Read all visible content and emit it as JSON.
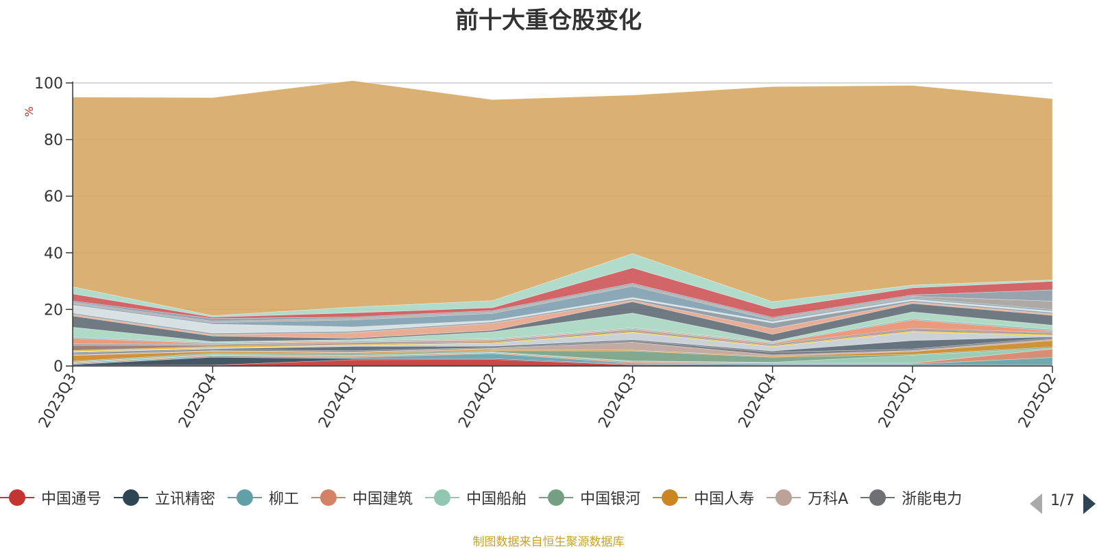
{
  "chart_data": {
    "type": "area",
    "stacked": true,
    "title": "前十大重仓股变化",
    "ylabel": "%",
    "ylim": [
      0,
      100
    ],
    "yticks": [
      0,
      20,
      40,
      60,
      80,
      100
    ],
    "grid": true,
    "legend_position": "bottom",
    "categories": [
      "2023Q3",
      "2023Q4",
      "2024Q1",
      "2024Q2",
      "2024Q3",
      "2024Q4",
      "2025Q1",
      "2025Q2"
    ],
    "series": [
      {
        "color": "#c23531",
        "values": [
          0.2,
          0.3,
          2.2,
          2.3,
          0.4,
          0.2,
          0.2,
          0.2
        ]
      },
      {
        "color": "#2f4554",
        "values": [
          0.3,
          2.8,
          0.4,
          0.3,
          0.2,
          0.2,
          0.2,
          0.2
        ]
      },
      {
        "color": "#61a0a8",
        "values": [
          0.3,
          0.4,
          0.4,
          1.8,
          0.4,
          0.3,
          0.3,
          2.6
        ]
      },
      {
        "name": "中国建筑",
        "color": "#d48265",
        "values": [
          0.3,
          0.3,
          0.4,
          0.3,
          0.4,
          0.3,
          0.3,
          3.0
        ]
      },
      {
        "name": "中国船舶",
        "color": "#91c7ae",
        "values": [
          0.3,
          0.4,
          0.4,
          0.3,
          0.4,
          0.3,
          2.8,
          0.3
        ]
      },
      {
        "name": "中国银河",
        "color": "#749f83",
        "values": [
          0.3,
          0.4,
          0.5,
          0.4,
          3.5,
          1.8,
          0.3,
          0.4
        ]
      },
      {
        "name": "中国人寿",
        "color": "#ca8622",
        "values": [
          2.0,
          0.5,
          0.4,
          0.4,
          0.3,
          0.3,
          1.0,
          2.3
        ]
      },
      {
        "name": "万科A",
        "color": "#bda29a",
        "values": [
          0.4,
          0.3,
          0.3,
          0.4,
          2.8,
          0.5,
          0.4,
          0.5
        ]
      },
      {
        "name": "浙能电力",
        "color": "#6e7074",
        "values": [
          0.4,
          0.4,
          0.4,
          0.3,
          0.5,
          1.0,
          0.5,
          0.5
        ]
      },
      {
        "color": "#546570",
        "values": [
          0.3,
          0.3,
          1.5,
          0.5,
          0.4,
          0.4,
          3.0,
          0.3
        ]
      },
      {
        "color": "#c4ccd3",
        "values": [
          0.3,
          0.3,
          0.4,
          1.0,
          2.5,
          1.5,
          3.0,
          0.4
        ]
      },
      {
        "color": "#e6b600",
        "values": [
          0.4,
          0.5,
          0.3,
          0.3,
          0.3,
          0.3,
          0.4,
          0.4
        ]
      },
      {
        "color": "#95706d",
        "values": [
          1.8,
          0.4,
          0.4,
          0.3,
          0.4,
          0.3,
          0.4,
          0.4
        ]
      },
      {
        "color": "#909090",
        "values": [
          0.5,
          0.4,
          0.4,
          0.4,
          0.4,
          0.4,
          0.5,
          0.4
        ]
      },
      {
        "color": "#e98f6f",
        "values": [
          2.0,
          0.3,
          0.3,
          0.3,
          0.3,
          0.3,
          3.0,
          0.5
        ]
      },
      {
        "color": "#7ab1b0",
        "values": [
          0.4,
          0.3,
          0.3,
          0.3,
          0.3,
          0.3,
          0.4,
          0.5
        ]
      },
      {
        "color": "#a8d6c0",
        "values": [
          3.5,
          0.3,
          0.3,
          2.5,
          5.2,
          0.3,
          2.4,
          1.5
        ]
      },
      {
        "color": "#5f6b74",
        "values": [
          4.0,
          2.0,
          0.5,
          0.5,
          4.0,
          2.5,
          3.0,
          3.5
        ]
      },
      {
        "color": "#e4a58a",
        "values": [
          0.5,
          0.5,
          2.0,
          2.5,
          0.5,
          2.0,
          0.5,
          0.5
        ]
      },
      {
        "color": "#8a96a0",
        "values": [
          0.5,
          0.5,
          0.5,
          0.5,
          0.5,
          2.0,
          0.5,
          0.5
        ]
      },
      {
        "color": "#d3dde0",
        "values": [
          2.8,
          3.2,
          1.5,
          0.5,
          0.5,
          0.5,
          0.5,
          0.5
        ]
      },
      {
        "color": "#7e9fae",
        "values": [
          0.5,
          0.5,
          2.5,
          2.5,
          4.0,
          0.5,
          0.5,
          0.5
        ]
      },
      {
        "color": "#a6a09c",
        "values": [
          0.5,
          0.5,
          0.5,
          0.5,
          0.5,
          0.5,
          0.5,
          3.0
        ]
      },
      {
        "color": "#8a9aa6",
        "values": [
          0.5,
          1.0,
          0.5,
          0.5,
          0.5,
          0.5,
          0.5,
          4.0
        ]
      },
      {
        "color": "#cc5458",
        "values": [
          2.5,
          0.5,
          1.5,
          1.0,
          5.5,
          3.0,
          2.5,
          3.0
        ]
      },
      {
        "color": "#a9d8c5",
        "values": [
          2.5,
          0.5,
          2.0,
          2.5,
          5.0,
          2.5,
          1.0,
          0.5
        ]
      },
      {
        "color": "#d6a764",
        "values": [
          67.0,
          77.0,
          80.0,
          71.0,
          56.0,
          76.0,
          70.5,
          64.0
        ]
      }
    ]
  },
  "legend": {
    "items": [
      {
        "label": "中国通号",
        "color": "#c23531"
      },
      {
        "label": "立讯精密",
        "color": "#2f4554"
      },
      {
        "label": "柳工",
        "color": "#61a0a8"
      },
      {
        "label": "中国建筑",
        "color": "#d48265"
      },
      {
        "label": "中国船舶",
        "color": "#91c7ae"
      },
      {
        "label": "中国银河",
        "color": "#749f83"
      },
      {
        "label": "中国人寿",
        "color": "#ca8622"
      },
      {
        "label": "万科A",
        "color": "#bda29a"
      },
      {
        "label": "浙能电力",
        "color": "#6e7074"
      }
    ],
    "page_text": "1/7"
  },
  "source_note": "制图数据来自恒生聚源数据库"
}
